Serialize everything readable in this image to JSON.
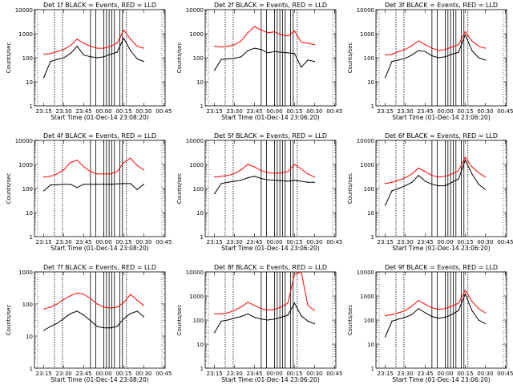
{
  "page": {
    "background": "#ffffff",
    "axis_color": "#000000",
    "events_color": "#000000",
    "lld_color": "#ff0000"
  },
  "shared": {
    "ylabel": "Counts/sec",
    "x_tick_labels": [
      "23:15",
      "23:30",
      "23:45",
      "00:00",
      "00:15",
      "00:30",
      "00:45"
    ],
    "x_range_minutes": [
      0,
      98
    ],
    "y_scale": "log"
  },
  "chart_data": [
    {
      "type": "line",
      "title": "Det 1f BLACK = Events, RED = LLD",
      "xlabel": "Start Time (01-Dec-14 23:08:20)",
      "ylabel": "Counts/sec",
      "ylim": [
        1,
        10000
      ],
      "y_tick_labels": [
        "1",
        "10",
        "100",
        "1000",
        "10000"
      ],
      "x": [
        "23:15",
        "23:20",
        "23:25",
        "23:30",
        "23:35",
        "23:40",
        "23:45",
        "23:50",
        "23:55",
        "00:00",
        "00:05",
        "00:10",
        "00:15",
        "00:20",
        "00:25",
        "00:30"
      ],
      "series": [
        {
          "name": "Events",
          "color": "#000000",
          "values": [
            15,
            70,
            85,
            100,
            150,
            300,
            130,
            110,
            100,
            110,
            140,
            170,
            650,
            200,
            90,
            70
          ]
        },
        {
          "name": "LLD",
          "color": "#ff0000",
          "values": [
            140,
            150,
            180,
            220,
            320,
            600,
            400,
            300,
            250,
            250,
            300,
            400,
            1400,
            600,
            300,
            250
          ]
        }
      ],
      "vlines": [
        "23:23",
        "23:29",
        "23:50",
        "23:54",
        "00:00",
        "00:02",
        "00:04",
        "00:06",
        "00:08",
        "00:12",
        "00:14",
        "00:17"
      ]
    },
    {
      "type": "line",
      "title": "Det 2f BLACK = Events, RED = LLD",
      "xlabel": "Start Time (01-Dec-14 23:06:20)",
      "ylabel": "Counts/sec",
      "ylim": [
        1,
        10000
      ],
      "y_tick_labels": [
        "1",
        "10",
        "100",
        "1000",
        "10000"
      ],
      "x": [
        "23:15",
        "23:20",
        "23:25",
        "23:30",
        "23:35",
        "23:40",
        "23:45",
        "23:50",
        "23:55",
        "00:00",
        "00:05",
        "00:10",
        "00:15",
        "00:20",
        "00:25",
        "00:30"
      ],
      "series": [
        {
          "name": "Events",
          "color": "#000000",
          "values": [
            30,
            85,
            90,
            95,
            110,
            200,
            250,
            220,
            160,
            180,
            170,
            160,
            150,
            40,
            80,
            70
          ]
        },
        {
          "name": "LLD",
          "color": "#ff0000",
          "values": [
            300,
            280,
            300,
            350,
            500,
            1100,
            2000,
            1400,
            1100,
            1200,
            900,
            800,
            1300,
            450,
            400,
            350
          ]
        }
      ],
      "vlines": [
        "23:23",
        "23:29",
        "23:50",
        "23:54",
        "00:00",
        "00:02",
        "00:04",
        "00:06",
        "00:08",
        "00:12",
        "00:14",
        "00:17"
      ]
    },
    {
      "type": "line",
      "title": "Det 3f BLACK = Events, RED = LLD",
      "xlabel": "Start Time (01-Dec-14 23:06:20)",
      "ylabel": "Counts/sec",
      "ylim": [
        1,
        10000
      ],
      "y_tick_labels": [
        "1",
        "10",
        "100",
        "1000",
        "10000"
      ],
      "x": [
        "23:15",
        "23:20",
        "23:25",
        "23:30",
        "23:35",
        "23:40",
        "23:45",
        "23:50",
        "23:55",
        "00:00",
        "00:05",
        "00:10",
        "00:15",
        "00:20",
        "00:25",
        "00:30"
      ],
      "series": [
        {
          "name": "Events",
          "color": "#000000",
          "values": [
            15,
            70,
            80,
            95,
            130,
            200,
            180,
            120,
            100,
            110,
            140,
            170,
            900,
            200,
            100,
            80
          ]
        },
        {
          "name": "LLD",
          "color": "#ff0000",
          "values": [
            130,
            140,
            180,
            220,
            320,
            500,
            350,
            250,
            200,
            220,
            280,
            350,
            1200,
            500,
            300,
            250
          ]
        }
      ],
      "vlines": [
        "23:23",
        "23:29",
        "23:50",
        "23:54",
        "00:00",
        "00:02",
        "00:04",
        "00:06",
        "00:08",
        "00:12",
        "00:14",
        "00:17"
      ]
    },
    {
      "type": "line",
      "title": "Det 4f BLACK = Events, RED = LLD",
      "xlabel": "Start Time (01-Dec-14 23:08:20)",
      "ylabel": "Counts/sec",
      "ylim": [
        1,
        10000
      ],
      "y_tick_labels": [
        "1",
        "10",
        "100",
        "1000",
        "10000"
      ],
      "x": [
        "23:15",
        "23:20",
        "23:25",
        "23:30",
        "23:35",
        "23:40",
        "23:45",
        "23:50",
        "23:55",
        "00:00",
        "00:05",
        "00:10",
        "00:15",
        "00:20",
        "00:25",
        "00:30"
      ],
      "series": [
        {
          "name": "Events",
          "color": "#000000",
          "values": [
            80,
            140,
            145,
            150,
            150,
            110,
            150,
            150,
            150,
            150,
            150,
            155,
            160,
            160,
            90,
            150
          ]
        },
        {
          "name": "LLD",
          "color": "#ff0000",
          "values": [
            300,
            320,
            400,
            600,
            1200,
            1500,
            800,
            500,
            400,
            400,
            400,
            500,
            1200,
            1800,
            900,
            600
          ]
        }
      ],
      "vlines": [
        "23:23",
        "23:29",
        "23:50",
        "23:54",
        "00:00",
        "00:02",
        "00:04",
        "00:06",
        "00:08",
        "00:12",
        "00:14",
        "00:17"
      ]
    },
    {
      "type": "line",
      "title": "Det 5f BLACK = Events, RED = LLD",
      "xlabel": "Start Time (01-Dec-14 23:06:20)",
      "ylabel": "Counts/sec",
      "ylim": [
        1,
        10000
      ],
      "y_tick_labels": [
        "1",
        "10",
        "100",
        "1000",
        "10000"
      ],
      "x": [
        "23:15",
        "23:20",
        "23:25",
        "23:30",
        "23:35",
        "23:40",
        "23:45",
        "23:50",
        "23:55",
        "00:00",
        "00:05",
        "00:10",
        "00:15",
        "00:20",
        "00:25",
        "00:30"
      ],
      "series": [
        {
          "name": "Events",
          "color": "#000000",
          "values": [
            60,
            160,
            180,
            200,
            220,
            280,
            320,
            260,
            230,
            220,
            210,
            200,
            220,
            200,
            180,
            180
          ]
        },
        {
          "name": "LLD",
          "color": "#ff0000",
          "values": [
            300,
            320,
            350,
            420,
            600,
            1000,
            800,
            550,
            450,
            430,
            440,
            500,
            1000,
            650,
            400,
            300
          ]
        }
      ],
      "vlines": [
        "23:23",
        "23:29",
        "23:50",
        "23:54",
        "00:00",
        "00:02",
        "00:04",
        "00:06",
        "00:08",
        "00:12",
        "00:14",
        "00:17"
      ]
    },
    {
      "type": "line",
      "title": "Det 6f BLACK = Events, RED = LLD",
      "xlabel": "Start Time (01-Dec-14 23:06:20)",
      "ylabel": "Counts/sec",
      "ylim": [
        1,
        10000
      ],
      "y_tick_labels": [
        "1",
        "10",
        "100",
        "1000",
        "10000"
      ],
      "x": [
        "23:15",
        "23:20",
        "23:25",
        "23:30",
        "23:35",
        "23:40",
        "23:45",
        "23:50",
        "23:55",
        "00:00",
        "00:05",
        "00:10",
        "00:15",
        "00:20",
        "00:25",
        "00:30"
      ],
      "series": [
        {
          "name": "Events",
          "color": "#000000",
          "values": [
            20,
            80,
            100,
            130,
            180,
            350,
            200,
            150,
            130,
            130,
            180,
            250,
            1500,
            400,
            150,
            90
          ]
        },
        {
          "name": "LLD",
          "color": "#ff0000",
          "values": [
            160,
            180,
            220,
            280,
            400,
            700,
            500,
            350,
            300,
            320,
            400,
            550,
            2000,
            800,
            450,
            300
          ]
        }
      ],
      "vlines": [
        "23:23",
        "23:29",
        "23:50",
        "23:54",
        "00:00",
        "00:02",
        "00:04",
        "00:06",
        "00:08",
        "00:12",
        "00:14",
        "00:17"
      ]
    },
    {
      "type": "line",
      "title": "Det 7f BLACK = Events, RED = LLD",
      "xlabel": "Start Time (01-Dec-14 23:08:20)",
      "ylabel": "Counts/sec",
      "ylim": [
        1,
        1000
      ],
      "y_tick_labels": [
        "1",
        "10",
        "100",
        "1000"
      ],
      "x": [
        "23:15",
        "23:20",
        "23:25",
        "23:30",
        "23:35",
        "23:40",
        "23:45",
        "23:50",
        "23:55",
        "00:00",
        "00:05",
        "00:10",
        "00:15",
        "00:20",
        "00:25",
        "00:30"
      ],
      "series": [
        {
          "name": "Events",
          "color": "#000000",
          "values": [
            15,
            20,
            25,
            35,
            50,
            60,
            45,
            30,
            20,
            18,
            18,
            20,
            35,
            50,
            60,
            40
          ]
        },
        {
          "name": "LLD",
          "color": "#ff0000",
          "values": [
            70,
            80,
            100,
            140,
            180,
            220,
            200,
            150,
            100,
            80,
            75,
            80,
            110,
            200,
            130,
            90
          ]
        }
      ],
      "vlines": [
        "23:23",
        "23:29",
        "23:50",
        "23:54",
        "00:00",
        "00:02",
        "00:04",
        "00:06",
        "00:08",
        "00:12",
        "00:14",
        "00:17"
      ]
    },
    {
      "type": "line",
      "title": "Det 8f BLACK = Events, RED = LLD",
      "xlabel": "Start Time (01-Dec-14 23:06:20)",
      "ylabel": "Counts/sec",
      "ylim": [
        1,
        10000
      ],
      "y_tick_labels": [
        "1",
        "10",
        "100",
        "1000",
        "10000"
      ],
      "x": [
        "23:15",
        "23:20",
        "23:25",
        "23:30",
        "23:35",
        "23:40",
        "23:45",
        "23:50",
        "23:55",
        "00:00",
        "00:05",
        "00:10",
        "00:15",
        "00:20",
        "00:25",
        "00:30"
      ],
      "series": [
        {
          "name": "Events",
          "color": "#000000",
          "values": [
            30,
            90,
            100,
            120,
            140,
            180,
            130,
            110,
            100,
            110,
            130,
            160,
            500,
            150,
            90,
            70
          ]
        },
        {
          "name": "LLD",
          "color": "#ff0000",
          "values": [
            180,
            180,
            200,
            250,
            350,
            550,
            400,
            300,
            260,
            280,
            350,
            500,
            8000,
            10000,
            400,
            250
          ]
        }
      ],
      "vlines": [
        "23:23",
        "23:29",
        "23:50",
        "23:54",
        "00:00",
        "00:02",
        "00:04",
        "00:06",
        "00:08",
        "00:12",
        "00:14",
        "00:17"
      ]
    },
    {
      "type": "line",
      "title": "Det 9f BLACK = Events, RED = LLD",
      "xlabel": "Start Time (01-Dec-14 23:06:20)",
      "ylabel": "Counts/sec",
      "ylim": [
        1,
        10000
      ],
      "y_tick_labels": [
        "1",
        "10",
        "100",
        "1000",
        "10000"
      ],
      "x": [
        "23:15",
        "23:20",
        "23:25",
        "23:30",
        "23:35",
        "23:40",
        "23:45",
        "23:50",
        "23:55",
        "00:00",
        "00:05",
        "00:10",
        "00:15",
        "00:20",
        "00:25",
        "00:30"
      ],
      "series": [
        {
          "name": "Events",
          "color": "#000000",
          "values": [
            20,
            90,
            110,
            130,
            170,
            300,
            200,
            140,
            120,
            130,
            170,
            250,
            1200,
            250,
            100,
            70
          ]
        },
        {
          "name": "LLD",
          "color": "#ff0000",
          "values": [
            150,
            170,
            200,
            250,
            380,
            650,
            450,
            320,
            280,
            300,
            380,
            500,
            1700,
            600,
            300,
            200
          ]
        }
      ],
      "vlines": [
        "23:23",
        "23:29",
        "23:50",
        "23:54",
        "00:00",
        "00:02",
        "00:04",
        "00:06",
        "00:08",
        "00:12",
        "00:14",
        "00:17"
      ]
    }
  ]
}
